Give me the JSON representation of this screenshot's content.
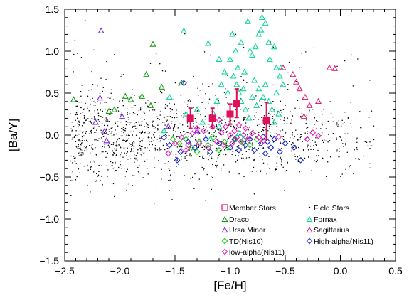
{
  "chart_data": {
    "type": "scatter",
    "title": "",
    "xlabel": "[Fe/H]",
    "ylabel": "[Ba/Y]",
    "xlim": [
      -2.5,
      0.5
    ],
    "ylim": [
      -1.5,
      1.5
    ],
    "xticks": [
      -2.5,
      -2.0,
      -1.5,
      -1.0,
      -0.5,
      0.0,
      0.5
    ],
    "xtick_labels": [
      "−2.5",
      "−2.0",
      "−1.5",
      "−1.0",
      "−0.5",
      "0.0",
      "0.5"
    ],
    "yticks": [
      -1.5,
      -1.0,
      -0.5,
      0.0,
      0.5,
      1.0,
      1.5
    ],
    "ytick_labels": [
      "−1.5",
      "−1.0",
      "−0.5",
      "0.0",
      "0.5",
      "1.0",
      "1.5"
    ],
    "grid": false,
    "legend_position": "bottom-right",
    "legend": [
      {
        "label": "Member Stars",
        "marker": "square",
        "color": "#e0105a"
      },
      {
        "label": "Field Stars",
        "marker": "dot",
        "color": "#000000"
      },
      {
        "label": "Draco",
        "marker": "triangle",
        "color": "#1a9a1a"
      },
      {
        "label": "Fornax",
        "marker": "triangle",
        "color": "#10d89a"
      },
      {
        "label": "Ursa Minor",
        "marker": "triangle",
        "color": "#7a2adf"
      },
      {
        "label": "Sagittarius",
        "marker": "triangle",
        "color": "#e8207a"
      },
      {
        "label": "TD(Nis10)",
        "marker": "diamond",
        "color": "#16d016"
      },
      {
        "label": "High-alpha(Nis11)",
        "marker": "diamond",
        "color": "#1a2ad8"
      },
      {
        "label": "low-alpha(Nis11)",
        "marker": "diamond",
        "color": "#f020c0"
      }
    ],
    "series": [
      {
        "name": "Member Stars",
        "marker": "square",
        "color": "#e0105a",
        "points": [
          [
            -1.36,
            0.2
          ],
          [
            -1.16,
            0.2
          ],
          [
            -1.0,
            0.25
          ],
          [
            -0.94,
            0.38
          ],
          [
            -0.67,
            0.17
          ]
        ],
        "errors": [
          0.12,
          0.12,
          0.12,
          0.17,
          0.22
        ]
      },
      {
        "name": "Draco",
        "marker": "triangle",
        "color": "#1a9a1a",
        "points": [
          [
            -2.42,
            0.42
          ],
          [
            -1.7,
            1.08
          ],
          [
            -1.76,
            0.72
          ],
          [
            -1.62,
            0.57
          ],
          [
            -1.8,
            0.46
          ],
          [
            -1.95,
            0.46
          ],
          [
            -2.05,
            0.3
          ],
          [
            -1.9,
            0.42
          ],
          [
            -1.44,
            0.62
          ],
          [
            -2.1,
            0.28
          ],
          [
            -1.72,
            0.35
          ]
        ]
      },
      {
        "name": "Ursa Minor",
        "marker": "triangle",
        "color": "#7a2adf",
        "points": [
          [
            -2.17,
            1.24
          ],
          [
            -2.18,
            0.44
          ],
          [
            -1.98,
            0.22
          ],
          [
            -2.14,
            0.04
          ],
          [
            -2.12,
            -0.07
          ],
          [
            -2.22,
            0.15
          ],
          [
            -1.56,
            0.1
          ],
          [
            -1.3,
            0.05
          ]
        ]
      },
      {
        "name": "Fornax",
        "marker": "triangle",
        "color": "#10d89a",
        "points": [
          [
            -1.42,
            1.24
          ],
          [
            -1.2,
            1.09
          ],
          [
            -1.1,
            0.9
          ],
          [
            -1.0,
            0.9
          ],
          [
            -0.98,
            1.2
          ],
          [
            -0.95,
            1.0
          ],
          [
            -0.93,
            0.8
          ],
          [
            -0.9,
            1.1
          ],
          [
            -0.87,
            0.75
          ],
          [
            -0.84,
            1.35
          ],
          [
            -0.82,
            1.0
          ],
          [
            -0.8,
            0.95
          ],
          [
            -0.77,
            1.05
          ],
          [
            -0.74,
            1.2
          ],
          [
            -0.72,
            1.25
          ],
          [
            -0.71,
            1.4
          ],
          [
            -0.68,
            1.33
          ],
          [
            -0.65,
            1.1
          ],
          [
            -0.64,
            0.9
          ],
          [
            -0.6,
            1.05
          ],
          [
            -0.58,
            0.8
          ],
          [
            -0.55,
            0.7
          ],
          [
            -0.52,
            0.6
          ],
          [
            -0.94,
            0.6
          ],
          [
            -0.92,
            0.5
          ],
          [
            -0.9,
            0.4
          ],
          [
            -0.88,
            0.55
          ],
          [
            -0.86,
            0.3
          ],
          [
            -0.83,
            0.2
          ],
          [
            -0.8,
            0.45
          ],
          [
            -0.78,
            0.65
          ],
          [
            -0.76,
            0.35
          ],
          [
            -0.74,
            0.55
          ],
          [
            -0.7,
            0.45
          ],
          [
            -0.68,
            0.6
          ],
          [
            -0.65,
            0.4
          ],
          [
            -0.62,
            0.3
          ],
          [
            -0.6,
            0.15
          ],
          [
            -0.58,
            0.5
          ],
          [
            -0.56,
            0.25
          ],
          [
            -0.54,
            0.8
          ],
          [
            -1.05,
            0.75
          ],
          [
            -1.08,
            0.6
          ],
          [
            -1.02,
            0.5
          ],
          [
            -1.12,
            0.4
          ],
          [
            -0.97,
            0.7
          ],
          [
            -1.55,
            0.45
          ],
          [
            -1.6,
            0.05
          ],
          [
            -1.4,
            0.25
          ],
          [
            -1.3,
            0.3
          ],
          [
            -1.25,
            0.15
          ],
          [
            -1.15,
            0.25
          ],
          [
            -1.1,
            0.1
          ],
          [
            -0.92,
            0.02
          ],
          [
            -0.88,
            -0.05
          ],
          [
            -1.18,
            -0.05
          ]
        ]
      },
      {
        "name": "Sagittarius",
        "marker": "triangle",
        "color": "#e8207a",
        "points": [
          [
            -0.1,
            0.8
          ],
          [
            -0.05,
            0.79
          ],
          [
            -0.52,
            0.8
          ],
          [
            -0.43,
            0.72
          ],
          [
            -0.4,
            0.63
          ],
          [
            -0.37,
            0.55
          ],
          [
            -0.32,
            0.45
          ],
          [
            -0.28,
            0.35
          ],
          [
            -0.33,
            0.22
          ],
          [
            -0.2,
            0.4
          ]
        ]
      },
      {
        "name": "TD(Nis10)",
        "marker": "diamond",
        "color": "#16d016",
        "points": [
          [
            -1.46,
            -0.1
          ],
          [
            -1.4,
            -0.05
          ],
          [
            -1.35,
            -0.15
          ],
          [
            -1.28,
            -0.08
          ],
          [
            -1.2,
            -0.12
          ],
          [
            -1.15,
            -0.03
          ],
          [
            -1.1,
            -0.18
          ],
          [
            -1.05,
            -0.08
          ],
          [
            -1.02,
            -0.15
          ],
          [
            -0.95,
            -0.05
          ],
          [
            -0.88,
            -0.1
          ],
          [
            -0.82,
            -0.12
          ],
          [
            -0.76,
            -0.05
          ],
          [
            -1.52,
            -0.05
          ],
          [
            -1.3,
            -0.2
          ]
        ]
      },
      {
        "name": "High-alpha(Nis11)",
        "marker": "diamond",
        "color": "#1a2ad8",
        "points": [
          [
            -1.42,
            0.62
          ],
          [
            -1.6,
            -0.03
          ],
          [
            -1.55,
            -0.12
          ],
          [
            -1.45,
            -0.2
          ],
          [
            -1.38,
            -0.08
          ],
          [
            -1.32,
            -0.15
          ],
          [
            -1.22,
            -0.05
          ],
          [
            -1.18,
            -0.2
          ],
          [
            -1.1,
            -0.1
          ],
          [
            -1.0,
            -0.15
          ],
          [
            -0.96,
            -0.05
          ],
          [
            -0.92,
            -0.18
          ],
          [
            -0.86,
            -0.12
          ],
          [
            -0.82,
            -0.05
          ],
          [
            -0.78,
            -0.18
          ],
          [
            -0.72,
            -0.1
          ],
          [
            -0.68,
            -0.22
          ],
          [
            -0.63,
            -0.15
          ],
          [
            -0.6,
            -0.05
          ],
          [
            -0.55,
            -0.2
          ],
          [
            -0.5,
            -0.1
          ],
          [
            -0.42,
            -0.15
          ],
          [
            -0.36,
            -0.3
          ],
          [
            -0.3,
            -0.05
          ],
          [
            -0.7,
            -0.02
          ],
          [
            -0.66,
            -0.08
          ],
          [
            -1.48,
            -0.3
          ]
        ]
      },
      {
        "name": "low-alpha(Nis11)",
        "marker": "diamond",
        "color": "#f020c0",
        "points": [
          [
            -1.56,
            -0.22
          ],
          [
            -1.5,
            -0.1
          ],
          [
            -1.44,
            -0.03
          ],
          [
            -1.38,
            -0.12
          ],
          [
            -1.34,
            0.02
          ],
          [
            -1.28,
            -0.1
          ],
          [
            -1.24,
            0.05
          ],
          [
            -1.2,
            -0.15
          ],
          [
            -1.16,
            0.1
          ],
          [
            -1.12,
            -0.08
          ],
          [
            -1.08,
            0.03
          ],
          [
            -1.06,
            -0.12
          ],
          [
            -1.04,
            0.1
          ],
          [
            -1.0,
            0.0
          ],
          [
            -0.98,
            -0.1
          ],
          [
            -0.96,
            0.05
          ],
          [
            -0.94,
            -0.03
          ],
          [
            -0.92,
            0.12
          ],
          [
            -0.9,
            -0.08
          ],
          [
            -0.88,
            0.0
          ],
          [
            -0.86,
            0.08
          ],
          [
            -0.84,
            -0.05
          ],
          [
            -0.8,
            0.02
          ],
          [
            -0.74,
            -0.03
          ],
          [
            -0.7,
            -0.07
          ],
          [
            -0.56,
            -0.02
          ],
          [
            -0.3,
            -0.05
          ],
          [
            -0.25,
            0.03
          ],
          [
            -0.2,
            -0.01
          ],
          [
            -1.4,
            -0.18
          ],
          [
            -1.3,
            0.08
          ],
          [
            -1.1,
            0.18
          ]
        ]
      }
    ],
    "field_stars": {
      "name": "Field Stars",
      "color": "#000000",
      "count": 1400,
      "x_range": [
        -2.45,
        0.35
      ],
      "y_center": -0.02,
      "y_spread": 0.18
    }
  }
}
